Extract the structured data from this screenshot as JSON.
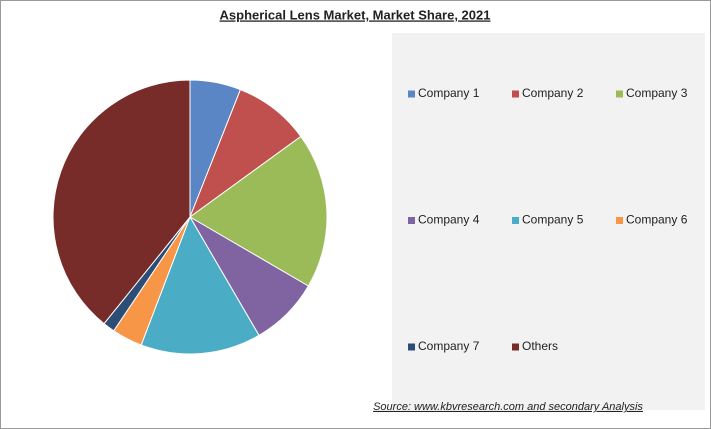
{
  "chart_data": {
    "type": "pie",
    "title": "Aspherical Lens Market, Market Share, 2021",
    "categories": [
      "Company 1",
      "Company 2",
      "Company 3",
      "Company 4",
      "Company 5",
      "Company 6",
      "Company 7",
      "Others"
    ],
    "values": [
      6,
      9,
      18.4,
      8.2,
      14.2,
      3.6,
      1.4,
      39.2
    ],
    "colors": [
      "#5b86c5",
      "#c0504d",
      "#9bbb59",
      "#8064a2",
      "#4bacc6",
      "#f79646",
      "#2c4d75",
      "#772c2a"
    ],
    "legend": "right",
    "source": "Source:  www.kbvresearch.com  and secondary Analysis"
  }
}
